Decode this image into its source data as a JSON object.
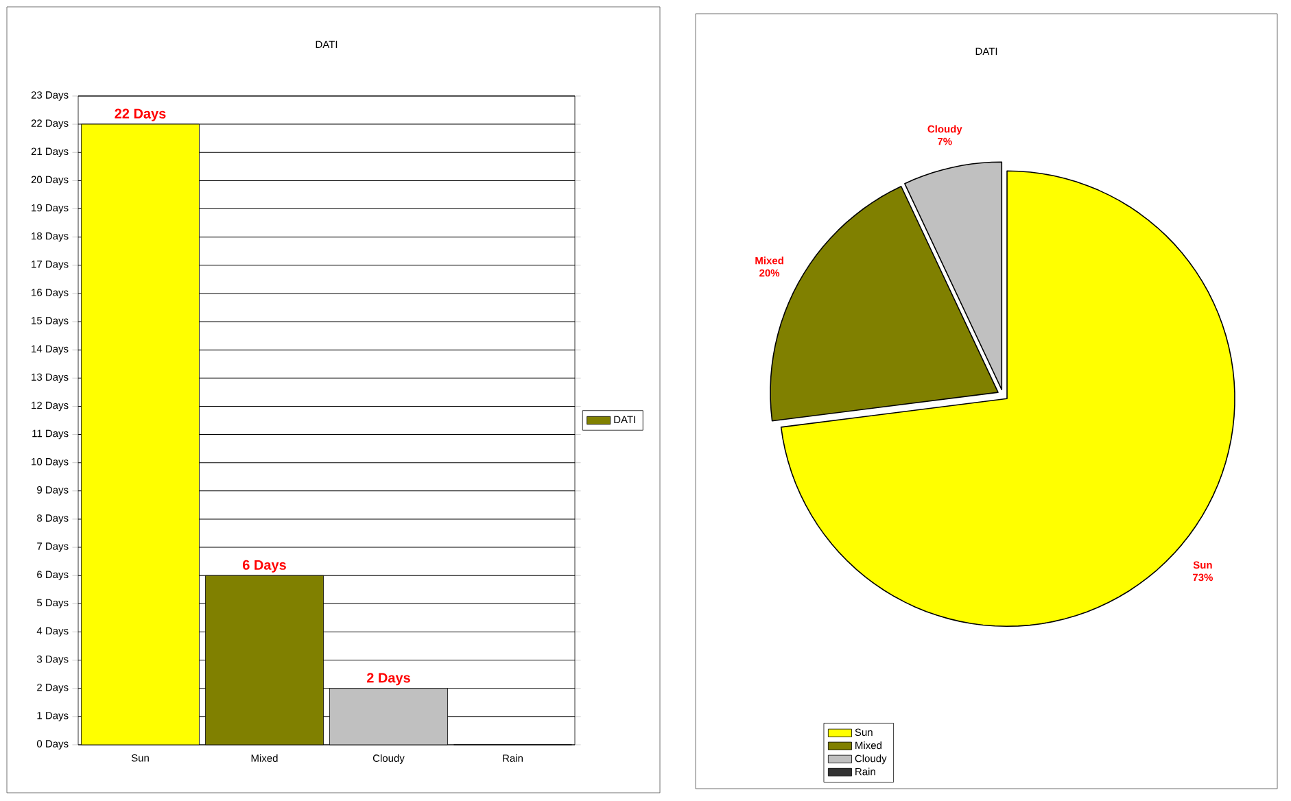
{
  "chart_data": [
    {
      "type": "bar",
      "title": "DATI",
      "categories": [
        "Sun",
        "Mixed",
        "Cloudy",
        "Rain"
      ],
      "series": [
        {
          "name": "DATI",
          "color": "#808000",
          "colors": [
            "#ffff00",
            "#808000",
            "#c0c0c0",
            "#333333"
          ],
          "values": [
            22,
            6,
            2,
            0
          ],
          "value_labels": [
            "22 Days",
            "6 Days",
            "2 Days",
            null
          ]
        }
      ],
      "ylim": [
        0,
        23
      ],
      "yticks": [
        {
          "value": 0,
          "label": "0 Days"
        },
        {
          "value": 1,
          "label": "1 Days"
        },
        {
          "value": 2,
          "label": "2 Days"
        },
        {
          "value": 3,
          "label": "3 Days"
        },
        {
          "value": 4,
          "label": "4 Days"
        },
        {
          "value": 5,
          "label": "5 Days"
        },
        {
          "value": 6,
          "label": "6 Days"
        },
        {
          "value": 7,
          "label": "7 Days"
        },
        {
          "value": 8,
          "label": "8 Days"
        },
        {
          "value": 9,
          "label": "9 Days"
        },
        {
          "value": 10,
          "label": "10 Days"
        },
        {
          "value": 11,
          "label": "11 Days"
        },
        {
          "value": 12,
          "label": "12 Days"
        },
        {
          "value": 13,
          "label": "13 Days"
        },
        {
          "value": 14,
          "label": "14 Days"
        },
        {
          "value": 15,
          "label": "15 Days"
        },
        {
          "value": 16,
          "label": "16 Days"
        },
        {
          "value": 17,
          "label": "17 Days"
        },
        {
          "value": 18,
          "label": "18 Days"
        },
        {
          "value": 19,
          "label": "19 Days"
        },
        {
          "value": 20,
          "label": "20 Days"
        },
        {
          "value": 21,
          "label": "21 Days"
        },
        {
          "value": 22,
          "label": "22 Days"
        },
        {
          "value": 23,
          "label": "23 Days"
        }
      ],
      "grid": "y",
      "legend": "right"
    },
    {
      "type": "pie",
      "title": "DATI",
      "categories": [
        "Sun",
        "Mixed",
        "Cloudy",
        "Rain"
      ],
      "values": [
        73,
        20,
        7,
        0
      ],
      "colors": [
        "#ffff00",
        "#808000",
        "#c0c0c0",
        "#333333"
      ],
      "value_labels": [
        "73%",
        "20%",
        "7%",
        null
      ],
      "legend": "bottom left"
    }
  ]
}
